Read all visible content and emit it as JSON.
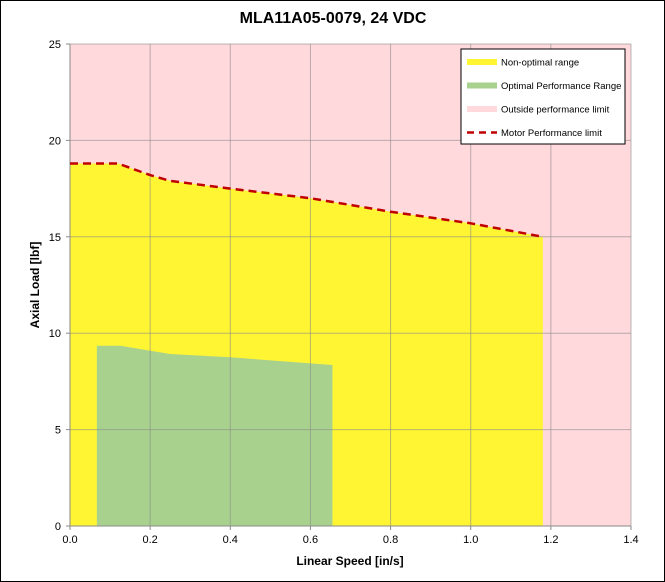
{
  "chart_data": {
    "type": "area",
    "title": "MLA11A05-0079, 24 VDC",
    "xlabel": "Linear Speed [in/s]",
    "ylabel": "Axial Load [lbf]",
    "xlim": [
      0,
      1.4
    ],
    "ylim": [
      0,
      25
    ],
    "xticks": [
      "0.0",
      "0.2",
      "0.4",
      "0.6",
      "0.8",
      "1.0",
      "1.2",
      "1.4"
    ],
    "yticks": [
      "0",
      "5",
      "10",
      "15",
      "20",
      "25"
    ],
    "grid": true,
    "legend_placement": "top-right",
    "series": [
      {
        "name": "Outside performance limit",
        "color": "#ffd9dc",
        "kind": "background-area"
      },
      {
        "name": "Non-optimal range",
        "color": "#fff533",
        "kind": "area",
        "x": [
          0,
          0.12,
          0.2,
          0.25,
          0.4,
          0.6,
          0.8,
          1.0,
          1.18
        ],
        "y": [
          18.8,
          18.8,
          18.2,
          17.9,
          17.5,
          17.0,
          16.3,
          15.7,
          15.0
        ]
      },
      {
        "name": "Optimal Performance Range",
        "color": "#a9d18e",
        "kind": "area",
        "x": [
          0.067,
          0.125,
          0.25,
          0.4,
          0.655
        ],
        "y": [
          9.35,
          9.35,
          8.92,
          8.75,
          8.35
        ]
      },
      {
        "name": "Motor Performance limit",
        "color": "#c00000",
        "kind": "dashed-line",
        "x": [
          0,
          0.12,
          0.2,
          0.25,
          0.4,
          0.6,
          0.8,
          1.0,
          1.18
        ],
        "y": [
          18.8,
          18.8,
          18.2,
          17.9,
          17.5,
          17.0,
          16.3,
          15.7,
          15.0
        ]
      }
    ]
  }
}
